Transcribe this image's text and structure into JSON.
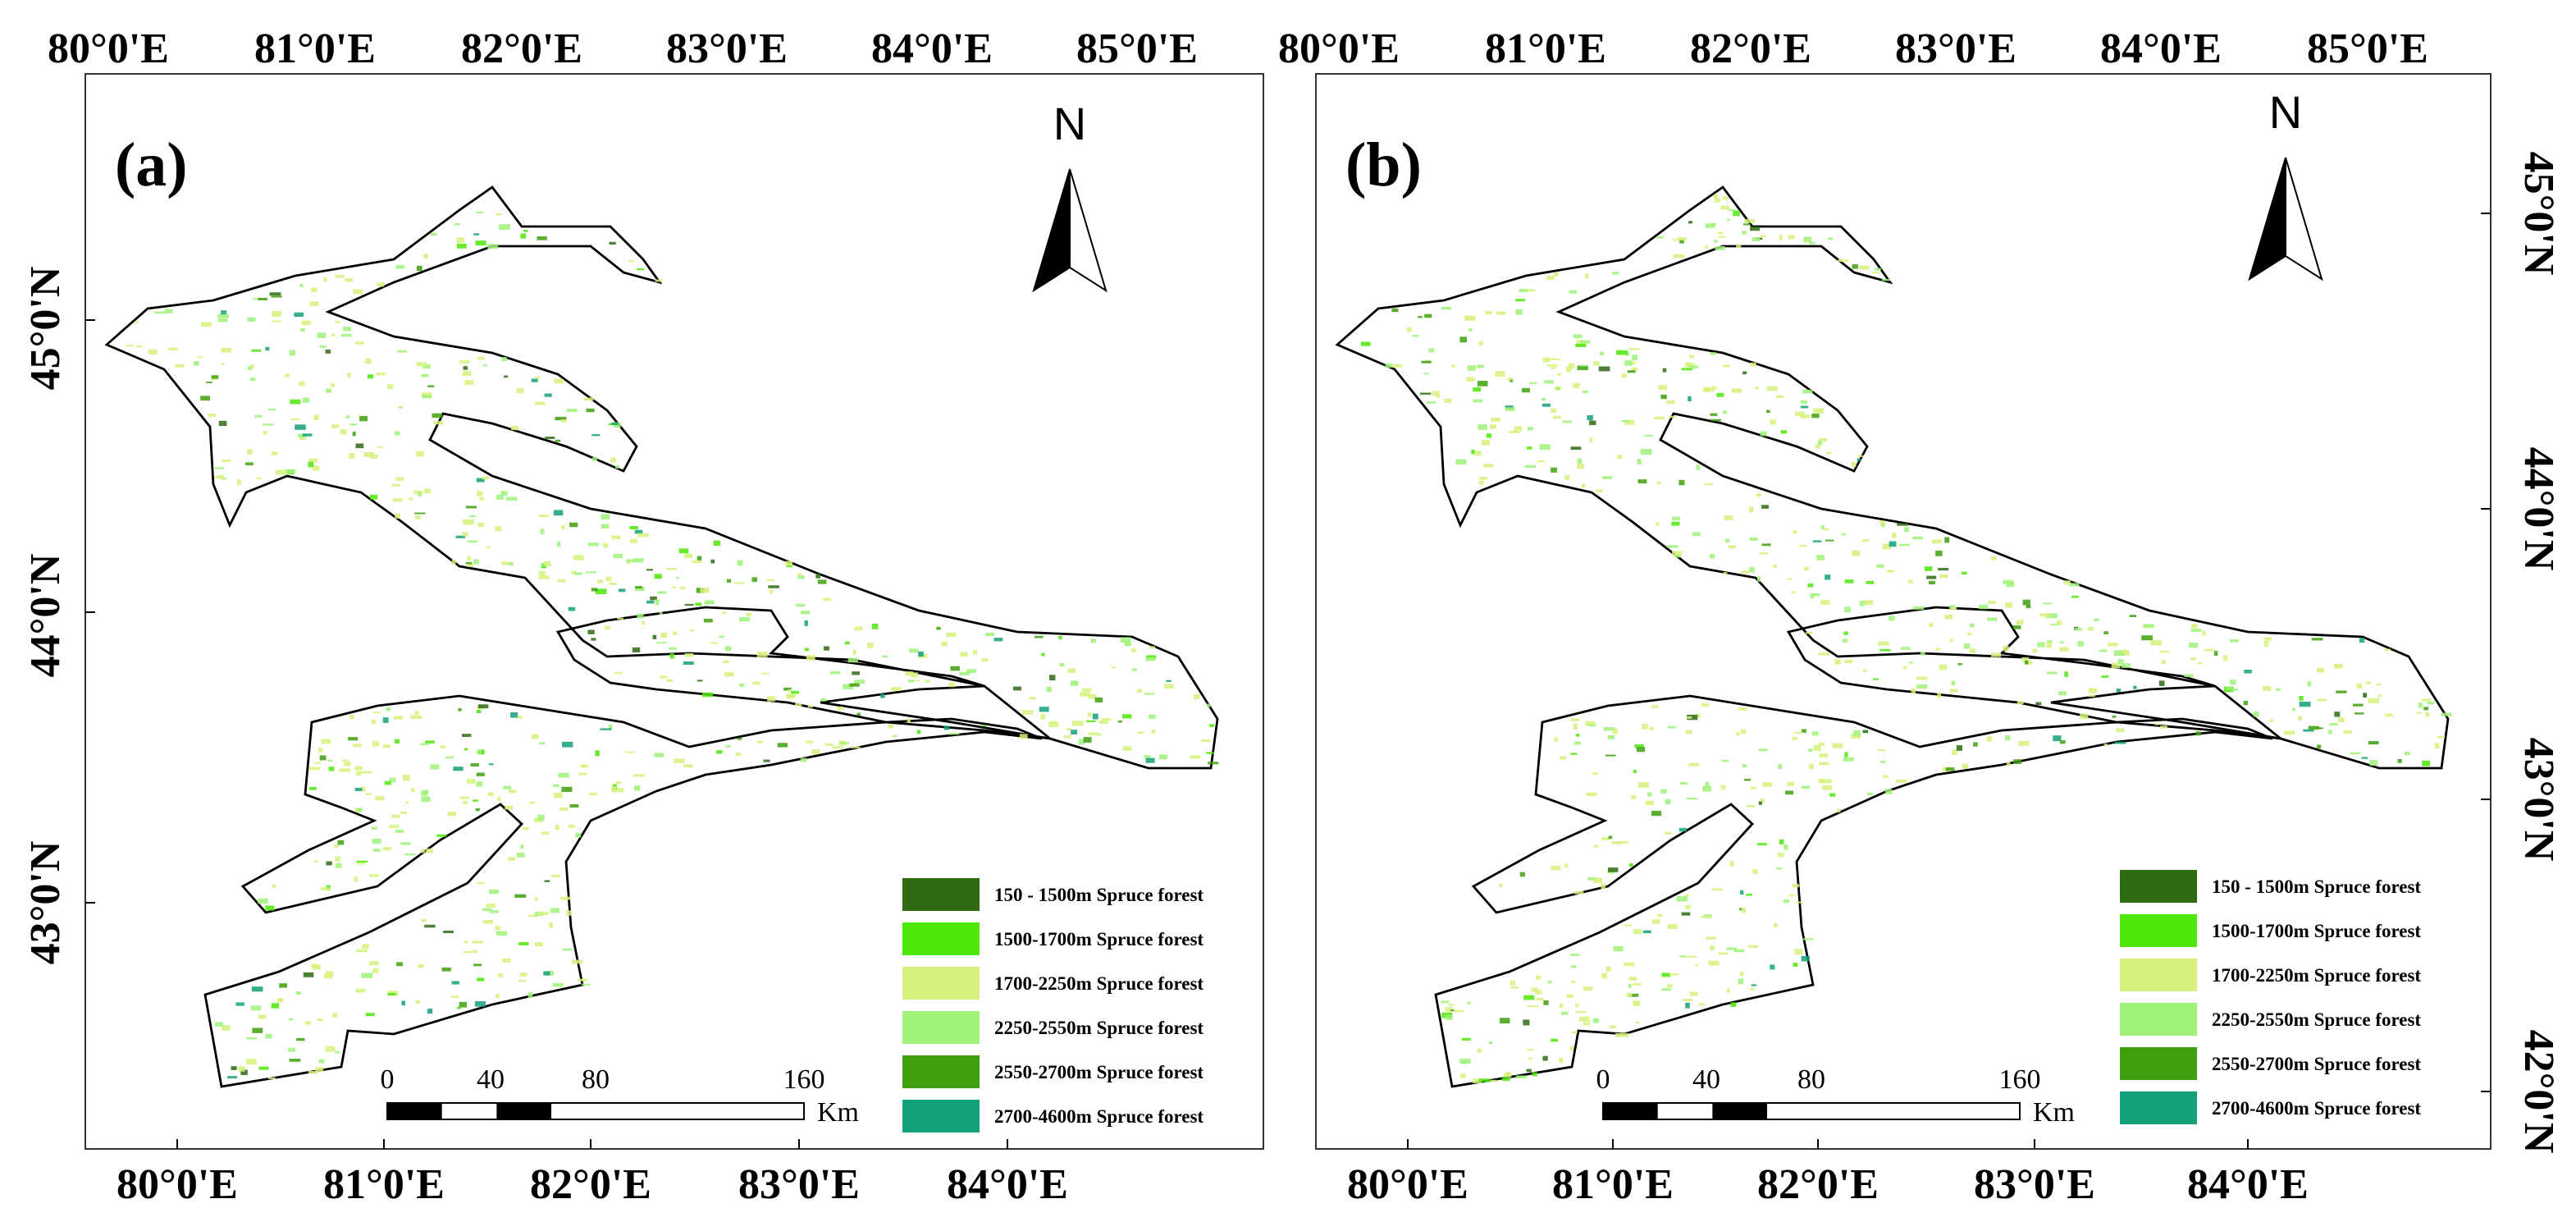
{
  "panels": [
    {
      "label": "(a)",
      "north": "N",
      "top_labels": [
        "80°0'E",
        "81°0'E",
        "82°0'E",
        "83°0'E",
        "84°0'E",
        "85°0'E"
      ],
      "bottom_labels": [
        "80°0'E",
        "81°0'E",
        "82°0'E",
        "83°0'E",
        "84°0'E"
      ],
      "side_labels": [
        "45°0'N",
        "44°0'N",
        "43°0'N"
      ],
      "scale_bar": {
        "labels": [
          "0",
          "40",
          "80",
          "160"
        ],
        "unit": "Km"
      },
      "legend": [
        {
          "label": "150 - 1500m Spruce forest",
          "color": "#2e6b14"
        },
        {
          "label": "1500-1700m Spruce forest",
          "color": "#4de80a"
        },
        {
          "label": "1700-2250m Spruce forest",
          "color": "#d6f27c"
        },
        {
          "label": "2250-2550m Spruce forest",
          "color": "#a0f27a"
        },
        {
          "label": "2550-2700m Spruce forest",
          "color": "#3ea00c"
        },
        {
          "label": "2700-4600m Spruce forest",
          "color": "#14a07a"
        }
      ]
    },
    {
      "label": "(b)",
      "north": "N",
      "top_labels": [
        "80°0'E",
        "81°0'E",
        "82°0'E",
        "83°0'E",
        "84°0'E",
        "85°0'E"
      ],
      "bottom_labels": [
        "80°0'E",
        "81°0'E",
        "82°0'E",
        "83°0'E",
        "84°0'E"
      ],
      "side_labels": [
        "45°0'N",
        "44°0'N",
        "43°0'N",
        "42°0'N"
      ],
      "scale_bar": {
        "labels": [
          "0",
          "40",
          "80",
          "160"
        ],
        "unit": "Km"
      },
      "legend": [
        {
          "label": "150 - 1500m Spruce forest",
          "color": "#2e6b14"
        },
        {
          "label": "1500-1700m Spruce forest",
          "color": "#4de80a"
        },
        {
          "label": "1700-2250m Spruce forest",
          "color": "#d6f27c"
        },
        {
          "label": "2250-2550m Spruce forest",
          "color": "#a0f27a"
        },
        {
          "label": "2550-2700m Spruce forest",
          "color": "#3ea00c"
        },
        {
          "label": "2700-4600m Spruce forest",
          "color": "#14a07a"
        }
      ]
    }
  ]
}
